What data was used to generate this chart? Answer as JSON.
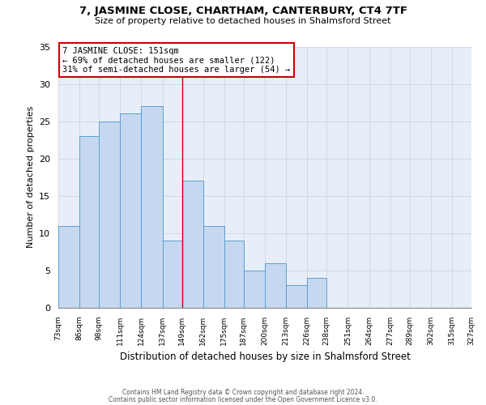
{
  "title": "7, JASMINE CLOSE, CHARTHAM, CANTERBURY, CT4 7TF",
  "subtitle": "Size of property relative to detached houses in Shalmsford Street",
  "xlabel": "Distribution of detached houses by size in Shalmsford Street",
  "ylabel": "Number of detached properties",
  "footer_line1": "Contains HM Land Registry data © Crown copyright and database right 2024.",
  "footer_line2": "Contains public sector information licensed under the Open Government Licence v3.0.",
  "bin_edges": [
    73,
    86,
    98,
    111,
    124,
    137,
    149,
    162,
    175,
    187,
    200,
    213,
    226,
    238,
    251,
    264,
    277,
    289,
    302,
    315,
    327
  ],
  "bin_labels": [
    "73sqm",
    "86sqm",
    "98sqm",
    "111sqm",
    "124sqm",
    "137sqm",
    "149sqm",
    "162sqm",
    "175sqm",
    "187sqm",
    "200sqm",
    "213sqm",
    "226sqm",
    "238sqm",
    "251sqm",
    "264sqm",
    "277sqm",
    "289sqm",
    "302sqm",
    "315sqm",
    "327sqm"
  ],
  "bar_heights": [
    11,
    23,
    25,
    26,
    27,
    9,
    17,
    11,
    9,
    5,
    6,
    3,
    4,
    0,
    0,
    0,
    0,
    0,
    0,
    0
  ],
  "bar_color": "#c5d8ef",
  "bar_edge_color": "#5a9fd4",
  "reference_line_x": 149,
  "annotation_title": "7 JASMINE CLOSE: 151sqm",
  "annotation_line1": "← 69% of detached houses are smaller (122)",
  "annotation_line2": "31% of semi-detached houses are larger (54) →",
  "annotation_box_color": "#ffffff",
  "annotation_box_edge_color": "#cc0000",
  "ylim": [
    0,
    35
  ],
  "yticks": [
    0,
    5,
    10,
    15,
    20,
    25,
    30,
    35
  ],
  "background_color": "#ffffff",
  "grid_color": "#d0d8e8"
}
